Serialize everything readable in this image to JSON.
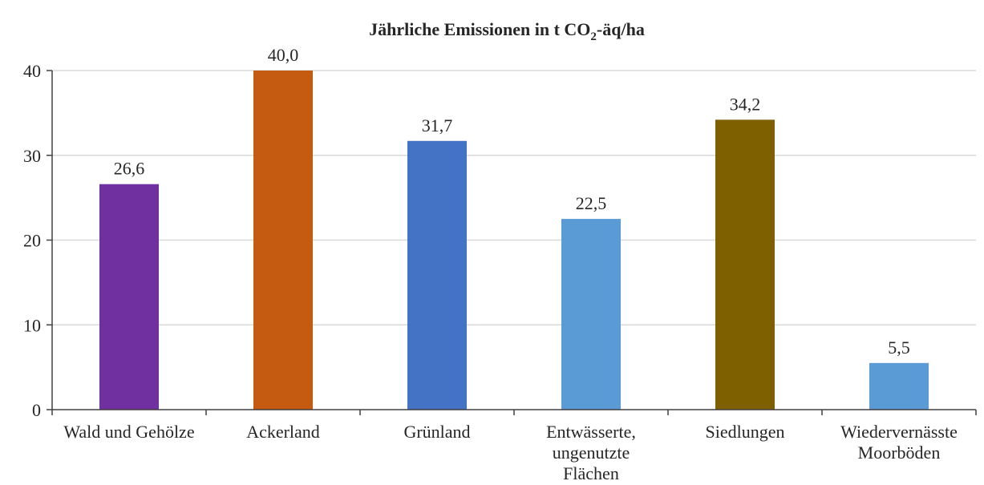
{
  "chart_data": {
    "type": "bar",
    "title": "Jährliche Emissionen in t CO",
    "title_subscript": "2",
    "title_suffix": "-äq/ha",
    "xlabel": "",
    "ylabel": "",
    "ylim": [
      0,
      40
    ],
    "yticks": [
      "0",
      "10",
      "20",
      "30",
      "40"
    ],
    "grid": true,
    "categories": [
      [
        "Wald und Gehölze"
      ],
      [
        "Ackerland"
      ],
      [
        "Grünland"
      ],
      [
        "Entwässerte,",
        "ungenutzte",
        "Flächen"
      ],
      [
        "Siedlungen"
      ],
      [
        "Wiedervernässte",
        "Moorböden"
      ]
    ],
    "values": [
      26.6,
      40.0,
      31.7,
      22.5,
      34.2,
      5.5
    ],
    "value_labels": [
      "26,6",
      "40,0",
      "31,7",
      "22,5",
      "34,2",
      "5,5"
    ],
    "colors": [
      "#7030a0",
      "#c55a11",
      "#4472c4",
      "#5b9bd5",
      "#7f6000",
      "#5b9bd5"
    ]
  }
}
